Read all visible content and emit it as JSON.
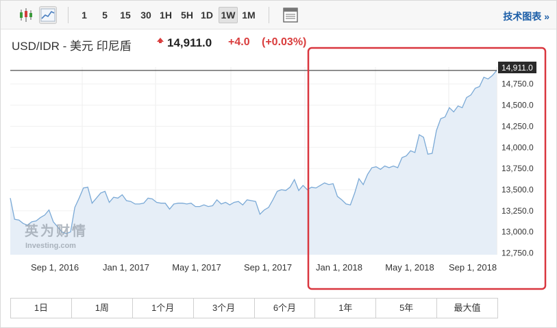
{
  "toolbar": {
    "intervals": [
      "1",
      "5",
      "15",
      "30",
      "1H",
      "5H",
      "1D",
      "1W",
      "1M"
    ],
    "active_interval": "1W",
    "tech_link": "技术图表 »",
    "icons": [
      "candlestick-icon",
      "line-chart-icon",
      "layout-icon"
    ]
  },
  "header": {
    "pair": "USD/IDR - 美元 印尼盾",
    "price": "14,911.0",
    "change": "+4.0",
    "change_pct": "(+0.03%)",
    "change_color": "#d93d3d"
  },
  "watermark": {
    "cn": "英为财情",
    "en": "Investing.com"
  },
  "highlight_color": "#d9363e",
  "range_buttons": [
    "1日",
    "1周",
    "1个月",
    "3个月",
    "6个月",
    "1年",
    "5年",
    "最大值"
  ],
  "chart_data": {
    "type": "area",
    "x_ticks": [
      "Sep 1, 2016",
      "Jan 1, 2017",
      "May 1, 2017",
      "Sep 1, 2017",
      "Jan 1, 2018",
      "May 1, 2018",
      "Sep 1, 2018"
    ],
    "y_ticks": [
      "12,750.0",
      "13,000.0",
      "13,250.0",
      "13,500.0",
      "13,750.0",
      "14,000.0",
      "14,250.0",
      "14,500.0",
      "14,750.0"
    ],
    "ylim": [
      12730,
      14950
    ],
    "current_value_label": "14,911.0",
    "current_value": 14911,
    "line_color": "#7aa9d6",
    "fill_color": "#e6eef7",
    "series": [
      {
        "values": [
          13400,
          13150,
          13140,
          13100,
          13080,
          13120,
          13130,
          13170,
          13200,
          13260,
          13120,
          13060,
          13000,
          12980,
          13000,
          13290,
          13400,
          13520,
          13530,
          13340,
          13400,
          13460,
          13480,
          13350,
          13410,
          13400,
          13440,
          13370,
          13360,
          13330,
          13330,
          13340,
          13400,
          13390,
          13350,
          13340,
          13340,
          13270,
          13330,
          13340,
          13340,
          13330,
          13340,
          13300,
          13300,
          13320,
          13300,
          13310,
          13380,
          13330,
          13350,
          13320,
          13350,
          13360,
          13320,
          13380,
          13370,
          13360,
          13210,
          13260,
          13290,
          13380,
          13480,
          13500,
          13490,
          13530,
          13620,
          13490,
          13550,
          13500,
          13530,
          13520,
          13550,
          13580,
          13560,
          13570,
          13420,
          13380,
          13330,
          13320,
          13460,
          13630,
          13560,
          13680,
          13760,
          13770,
          13740,
          13780,
          13760,
          13780,
          13760,
          13880,
          13900,
          13960,
          13940,
          14150,
          14120,
          13920,
          13930,
          14200,
          14340,
          14360,
          14470,
          14420,
          14490,
          14470,
          14590,
          14620,
          14700,
          14720,
          14830,
          14810,
          14850,
          14911
        ]
      }
    ]
  }
}
